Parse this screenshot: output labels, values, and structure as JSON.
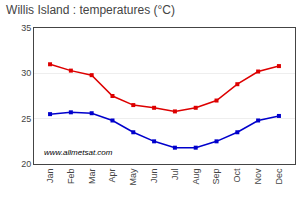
{
  "chart_data": {
    "type": "line",
    "title": "Willis Island : temperatures (°C)",
    "categories": [
      "Jan",
      "Feb",
      "Mar",
      "Apr",
      "May",
      "Jun",
      "Jul",
      "Aug",
      "Sep",
      "Oct",
      "Nov",
      "Dec"
    ],
    "series": [
      {
        "color": "#dd0000",
        "values": [
          31.0,
          30.3,
          29.8,
          27.5,
          26.5,
          26.2,
          25.8,
          26.2,
          27.0,
          28.8,
          30.2,
          30.8
        ]
      },
      {
        "color": "#0000cc",
        "values": [
          25.5,
          25.7,
          25.6,
          24.8,
          23.5,
          22.5,
          21.8,
          21.8,
          22.5,
          23.5,
          24.8,
          25.3
        ]
      }
    ],
    "ylim": [
      20,
      35
    ],
    "yticks": [
      20,
      25,
      30,
      35
    ],
    "grid": true,
    "marker": "square",
    "line_style": "solid",
    "annotations": [
      "www.allmetsat.com"
    ]
  }
}
